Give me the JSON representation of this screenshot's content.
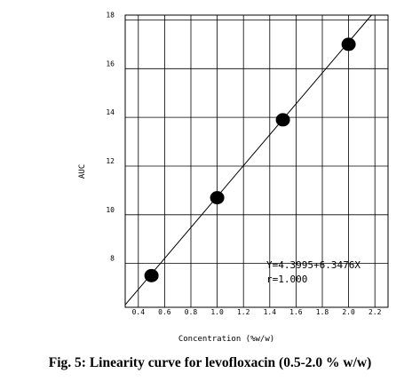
{
  "caption": "Fig. 5: Linearity curve for levofloxacin (0.5-2.0 % w/w)",
  "chart_data": {
    "type": "scatter",
    "xlabel": "Concentration (%w/w)",
    "ylabel": "AUC",
    "xlim": [
      0.3,
      2.3
    ],
    "ylim": [
      6.2,
      18.2
    ],
    "x_ticks": [
      "0.4",
      "0.6",
      "0.8",
      "1.0",
      "1.2",
      "1.4",
      "1.6",
      "1.8",
      "2.0",
      "2.2"
    ],
    "y_ticks": [
      "8",
      "10",
      "12",
      "14",
      "16",
      "18"
    ],
    "grid": true,
    "points": [
      {
        "x": 0.5,
        "y": 7.5
      },
      {
        "x": 1.0,
        "y": 10.7
      },
      {
        "x": 1.5,
        "y": 13.9
      },
      {
        "x": 2.0,
        "y": 17.0
      }
    ],
    "fit": {
      "intercept": 4.3995,
      "slope": 6.3476,
      "x_range": [
        0.3,
        2.3
      ]
    },
    "annotations": [
      "Y=4.3995+6.3476X",
      "r=1.000"
    ]
  }
}
